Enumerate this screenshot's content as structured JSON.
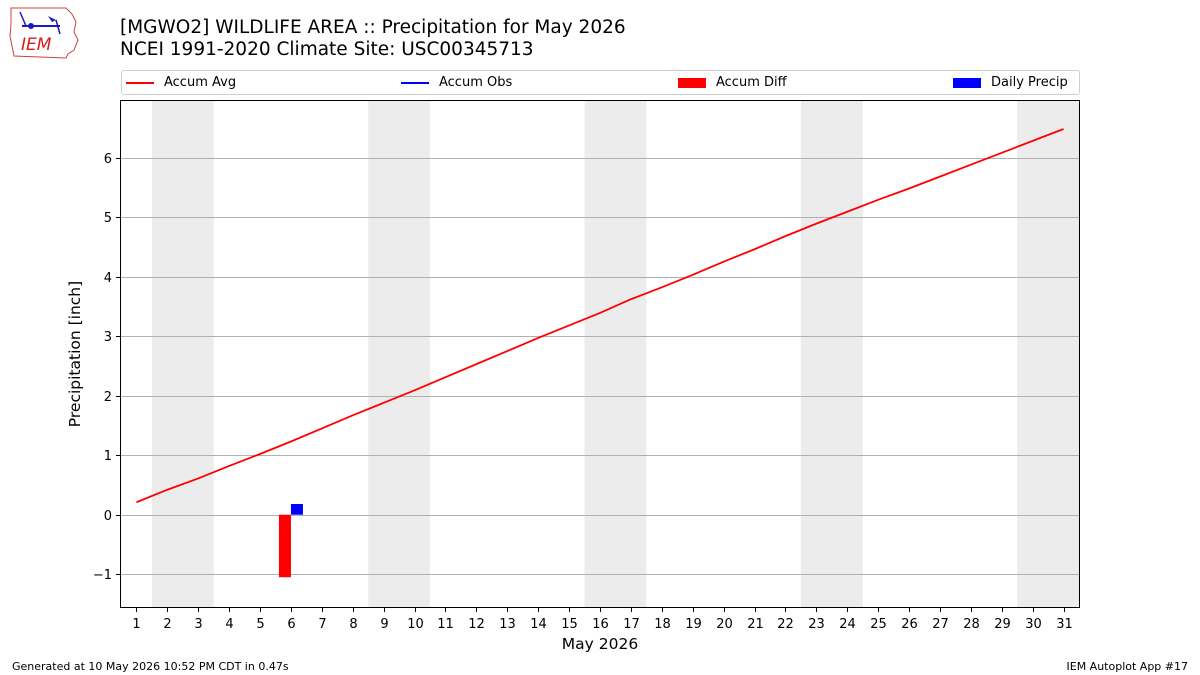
{
  "header": {
    "title_line1": "[MGWO2] WILDLIFE AREA :: Precipitation for May 2026",
    "title_line2": "NCEI 1991-2020 Climate Site: USC00345713"
  },
  "logo": {
    "text": "IEM"
  },
  "legend": {
    "accum_avg": "Accum Avg",
    "accum_obs": "Accum Obs",
    "accum_diff": "Accum Diff",
    "daily_precip": "Daily Precip"
  },
  "footer": {
    "left": "Generated at 10 May 2026 10:52 PM CDT in 0.47s",
    "right": "IEM Autoplot App #17"
  },
  "chart_data": {
    "type": "line",
    "xlabel": "May 2026",
    "ylabel": "Precipitation [inch]",
    "xlim": [
      0.5,
      31.5
    ],
    "ylim": [
      -1.55,
      6.95
    ],
    "x_ticks": [
      1,
      2,
      3,
      4,
      5,
      6,
      7,
      8,
      9,
      10,
      11,
      12,
      13,
      14,
      15,
      16,
      17,
      18,
      19,
      20,
      21,
      22,
      23,
      24,
      25,
      26,
      27,
      28,
      29,
      30,
      31
    ],
    "y_ticks": [
      -1,
      0,
      1,
      2,
      3,
      4,
      5,
      6
    ],
    "y_tick_labels": [
      "−1",
      "0",
      "1",
      "2",
      "3",
      "4",
      "5",
      "6"
    ],
    "grid": "horizontal",
    "legend_position": "top",
    "weekend_shading": [
      [
        1.5,
        3.5
      ],
      [
        8.5,
        10.5
      ],
      [
        15.5,
        17.5
      ],
      [
        22.5,
        24.5
      ],
      [
        29.5,
        31.5
      ]
    ],
    "series": [
      {
        "name": "Accum Avg",
        "kind": "line",
        "color": "#ff0000",
        "x": [
          1,
          2,
          3,
          4,
          5,
          6,
          7,
          8,
          9,
          10,
          11,
          12,
          13,
          14,
          15,
          16,
          17,
          18,
          19,
          20,
          21,
          22,
          23,
          24,
          25,
          26,
          27,
          28,
          29,
          30,
          31
        ],
        "values": [
          0.21,
          0.42,
          0.61,
          0.82,
          1.02,
          1.23,
          1.45,
          1.67,
          1.88,
          2.09,
          2.31,
          2.53,
          2.75,
          2.97,
          3.18,
          3.39,
          3.62,
          3.82,
          4.03,
          4.25,
          4.46,
          4.68,
          4.89,
          5.09,
          5.29,
          5.48,
          5.68,
          5.88,
          6.08,
          6.28,
          6.48
        ]
      },
      {
        "name": "Accum Diff",
        "kind": "bar",
        "color": "#ff0000",
        "x": [
          6
        ],
        "values": [
          -1.05
        ]
      },
      {
        "name": "Daily Precip",
        "kind": "bar",
        "color": "#0000ff",
        "x": [
          6
        ],
        "values": [
          0.18
        ]
      }
    ],
    "legend_only_series": [
      {
        "name": "Accum Obs",
        "kind": "line",
        "color": "#0000ff"
      }
    ]
  }
}
